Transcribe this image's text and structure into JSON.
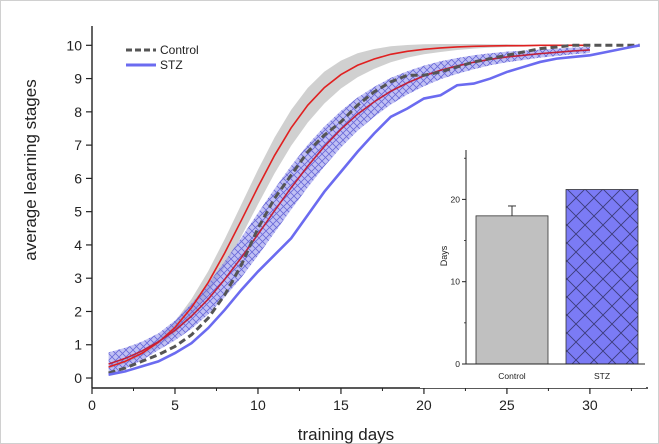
{
  "chart_data": [
    {
      "type": "line",
      "title": "",
      "xlabel": "training days",
      "ylabel": "average learning stages",
      "xlim": [
        0,
        33.5
      ],
      "ylim": [
        -0.3,
        10.4
      ],
      "xticks": [
        0,
        5,
        10,
        15,
        20,
        25,
        30
      ],
      "yticks": [
        0,
        1,
        2,
        3,
        4,
        5,
        6,
        7,
        8,
        9,
        10
      ],
      "grid": false,
      "legend": "top-left",
      "series": [
        {
          "name": "Control",
          "style": "dashed",
          "color": "#555555",
          "x": [
            1,
            2,
            3,
            4,
            5,
            6,
            7,
            8,
            9,
            10,
            11,
            12,
            13,
            14,
            15,
            16,
            17,
            18,
            19,
            20,
            21,
            22,
            23,
            24,
            25,
            26,
            27,
            28,
            29,
            30,
            31,
            32,
            33
          ],
          "y": [
            0.15,
            0.3,
            0.5,
            0.7,
            0.95,
            1.3,
            1.8,
            2.5,
            3.4,
            4.5,
            5.4,
            6.1,
            6.8,
            7.3,
            7.7,
            8.2,
            8.6,
            8.9,
            9.1,
            9.1,
            9.2,
            9.35,
            9.5,
            9.6,
            9.7,
            9.8,
            9.9,
            9.95,
            10,
            10,
            10,
            10,
            10
          ],
          "fit_color": "#e02020",
          "fit_y": [
            0.33,
            0.5,
            0.74,
            1.07,
            1.52,
            2.12,
            2.87,
            3.76,
            4.74,
            5.74,
            6.69,
            7.52,
            8.2,
            8.73,
            9.12,
            9.4,
            9.59,
            9.73,
            9.82,
            9.88,
            9.92,
            9.95,
            9.97,
            9.98,
            9.99,
            9.99,
            10,
            10,
            10,
            10
          ],
          "band_color": "#c8c8c8",
          "band_halfwidth": [
            0.05,
            0.06,
            0.08,
            0.12,
            0.18,
            0.26,
            0.34,
            0.42,
            0.48,
            0.52,
            0.54,
            0.54,
            0.52,
            0.48,
            0.42,
            0.36,
            0.3,
            0.24,
            0.19,
            0.15,
            0.12,
            0.09,
            0.07,
            0.05,
            0.04,
            0.03,
            0.02,
            0.02,
            0.01,
            0.01
          ]
        },
        {
          "name": "STZ",
          "style": "solid",
          "color": "#6b6bf0",
          "x": [
            1,
            2,
            3,
            4,
            5,
            6,
            7,
            8,
            9,
            10,
            11,
            12,
            13,
            14,
            15,
            16,
            17,
            18,
            19,
            20,
            21,
            22,
            23,
            24,
            25,
            26,
            27,
            28,
            29,
            30,
            31,
            32,
            33
          ],
          "y": [
            0.1,
            0.2,
            0.35,
            0.5,
            0.75,
            1.05,
            1.5,
            2.05,
            2.65,
            3.2,
            3.7,
            4.2,
            4.9,
            5.6,
            6.2,
            6.8,
            7.35,
            7.85,
            8.1,
            8.4,
            8.5,
            8.8,
            8.85,
            9.0,
            9.2,
            9.35,
            9.5,
            9.6,
            9.65,
            9.7,
            9.8,
            9.9,
            10.0
          ],
          "fit_color": "#c0203a",
          "fit_y": [
            0.42,
            0.59,
            0.81,
            1.09,
            1.43,
            1.86,
            2.37,
            2.97,
            3.62,
            4.32,
            5.03,
            5.72,
            6.37,
            6.96,
            7.48,
            7.93,
            8.3,
            8.62,
            8.87,
            9.08,
            9.25,
            9.38,
            9.49,
            9.58,
            9.65,
            9.7,
            9.75,
            9.79,
            9.83,
            9.86
          ],
          "band_color": "#8888ee",
          "band_halfwidth": [
            0.35,
            0.32,
            0.28,
            0.25,
            0.3,
            0.38,
            0.46,
            0.54,
            0.6,
            0.64,
            0.66,
            0.66,
            0.64,
            0.6,
            0.55,
            0.5,
            0.45,
            0.4,
            0.35,
            0.31,
            0.27,
            0.24,
            0.21,
            0.18,
            0.16,
            0.14,
            0.12,
            0.11,
            0.1,
            0.09
          ]
        }
      ]
    },
    {
      "type": "bar",
      "title": "",
      "xlabel": "",
      "ylabel": "Days",
      "ylim": [
        0,
        26
      ],
      "yticks": [
        0,
        10,
        20
      ],
      "grid": false,
      "categories": [
        "Control",
        "STZ"
      ],
      "values": [
        18,
        21.2
      ],
      "errors": [
        1.2,
        0
      ],
      "colors": [
        "#c0c0c0",
        "#7b7bf5"
      ],
      "patterns": [
        "none",
        "crosshatch"
      ]
    }
  ]
}
